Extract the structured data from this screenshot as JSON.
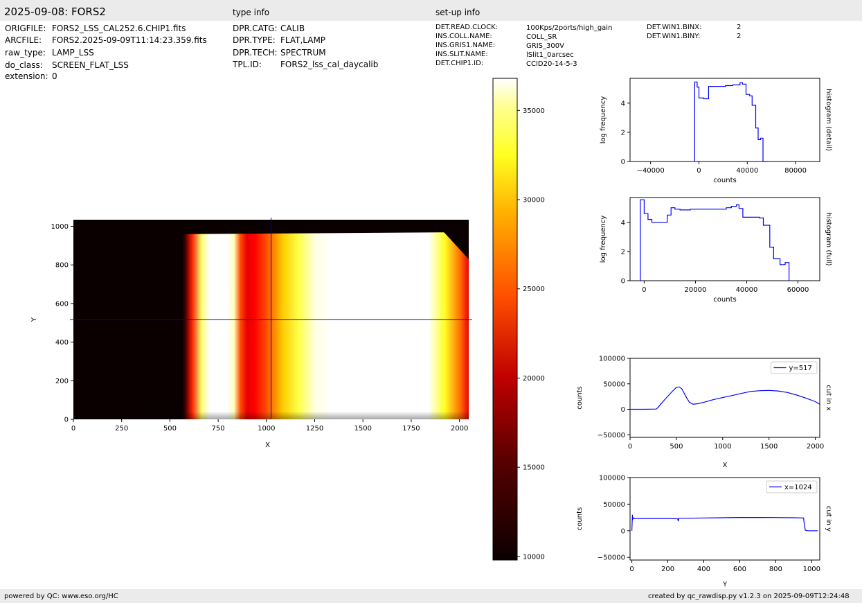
{
  "header": {
    "title": "2025-09-08: FORS2",
    "type_info_label": "type info",
    "setup_info_label": "set-up info"
  },
  "file_info": [
    {
      "key": "ORIGFILE:",
      "value": "FORS2_LSS_CAL252.6.CHIP1.fits"
    },
    {
      "key": "ARCFILE:",
      "value": "FORS2.2025-09-09T11:14:23.359.fits"
    },
    {
      "key": "raw_type:",
      "value": "LAMP_LSS"
    },
    {
      "key": "do_class:",
      "value": "SCREEN_FLAT_LSS"
    },
    {
      "key": "extension:",
      "value": "0"
    }
  ],
  "type_info": [
    {
      "key": "DPR.CATG:",
      "value": "CALIB"
    },
    {
      "key": "DPR.TYPE:",
      "value": "FLAT,LAMP"
    },
    {
      "key": "DPR.TECH:",
      "value": "SPECTRUM"
    },
    {
      "key": "TPL.ID:",
      "value": "FORS2_lss_cal_daycalib"
    }
  ],
  "setup_info": [
    {
      "key": "DET.READ.CLOCK:",
      "value": "100Kps/2ports/high_gain"
    },
    {
      "key": "INS.COLL.NAME:",
      "value": "COLL_SR"
    },
    {
      "key": "INS.GRIS1.NAME:",
      "value": "GRIS_300V"
    },
    {
      "key": "INS.SLIT.NAME:",
      "value": "lSlit1_0arcsec"
    },
    {
      "key": "DET.CHIP1.ID:",
      "value": "CCID20-14-5-3"
    }
  ],
  "setup_info2": [
    {
      "key": "DET.WIN1.BINX:",
      "value": "2"
    },
    {
      "key": "DET.WIN1.BINY:",
      "value": "2"
    }
  ],
  "footer": {
    "left": "powered by QC: www.eso.org/HC",
    "right": "created by qc_rawdisp.py v1.2.3 on 2025-09-09T12:24:48"
  },
  "colors": {
    "line": "#0000ff",
    "crosshair": "#0000cc",
    "header_bg": "#ebebeb"
  },
  "chart_data": [
    {
      "id": "image",
      "type": "heatmap",
      "xlabel": "X",
      "ylabel": "Y",
      "xlim": [
        0,
        2048
      ],
      "ylim": [
        0,
        1034
      ],
      "xticks": [
        0,
        250,
        500,
        750,
        1000,
        1250,
        1500,
        1750,
        2000
      ],
      "yticks": [
        0,
        200,
        400,
        600,
        800,
        1000
      ],
      "crosshair": {
        "x": 1024,
        "y": 517
      },
      "colormap": "hot"
    },
    {
      "id": "colorbar",
      "type": "colorbar",
      "range": [
        9800,
        36800
      ],
      "ticks": [
        10000,
        15000,
        20000,
        25000,
        30000,
        35000
      ]
    },
    {
      "id": "hist_detail",
      "type": "line",
      "xlabel": "counts",
      "ylabel": "log frequency",
      "side_label": "histogram (detail)",
      "xlim": [
        -57000,
        100000
      ],
      "ylim": [
        0,
        5.7
      ],
      "xticks": [
        -40000,
        0,
        40000,
        80000
      ],
      "yticks": [
        0,
        2,
        4
      ],
      "x": [
        -3500,
        -3500,
        -1500,
        -1500,
        0,
        0,
        4000,
        4000,
        8000,
        8000,
        16000,
        16000,
        22000,
        22000,
        28000,
        28000,
        34000,
        34000,
        36000,
        36000,
        39000,
        39000,
        42000,
        42000,
        44000,
        44000,
        47000,
        47000,
        49000,
        49000,
        51000,
        51000,
        53000,
        53000,
        55000,
        55000,
        57000,
        57000
      ],
      "y": [
        0,
        5.45,
        5.45,
        5.1,
        5.1,
        4.35,
        4.35,
        4.3,
        4.3,
        5.15,
        5.15,
        5.15,
        5.15,
        5.2,
        5.2,
        5.25,
        5.25,
        5.4,
        5.4,
        5.3,
        5.3,
        4.6,
        4.6,
        4.5,
        4.5,
        3.85,
        3.85,
        2.3,
        2.3,
        1.5,
        1.5,
        1.6,
        1.6,
        0.0,
        0.0,
        0.0,
        0.0,
        0.0
      ]
    },
    {
      "id": "hist_full",
      "type": "line",
      "xlabel": "counts",
      "ylabel": "log frequency",
      "side_label": "histogram (full)",
      "xlim": [
        -5500,
        68500
      ],
      "ylim": [
        0,
        5.7
      ],
      "xticks": [
        0,
        20000,
        40000,
        60000
      ],
      "yticks": [
        0,
        2,
        4
      ],
      "x": [
        -1500,
        -1500,
        0,
        0,
        1500,
        1500,
        3000,
        3000,
        9000,
        9000,
        10500,
        10500,
        12000,
        12000,
        14000,
        14000,
        18000,
        18000,
        32000,
        32000,
        34000,
        34000,
        36000,
        36000,
        37000,
        37000,
        38500,
        38500,
        45000,
        45000,
        46500,
        46500,
        49000,
        49000,
        50500,
        50500,
        53000,
        53000,
        55000,
        55000,
        56500,
        56500
      ],
      "y": [
        0,
        5.55,
        5.55,
        4.6,
        4.6,
        4.2,
        4.2,
        4.0,
        4.0,
        4.5,
        4.5,
        5.0,
        5.0,
        4.9,
        4.9,
        4.85,
        4.85,
        4.9,
        4.9,
        5.0,
        5.0,
        5.1,
        5.1,
        5.2,
        5.2,
        4.95,
        4.95,
        4.35,
        4.35,
        4.3,
        4.3,
        3.8,
        3.8,
        2.3,
        2.3,
        1.5,
        1.5,
        1.1,
        1.1,
        1.25,
        1.25,
        0.0
      ]
    },
    {
      "id": "cut_x",
      "type": "line",
      "xlabel": "X",
      "ylabel": "counts",
      "side_label": "cut in x",
      "legend": "y=517",
      "legend_position": "top-right",
      "xlim": [
        0,
        2048
      ],
      "ylim": [
        -55000,
        100000
      ],
      "xticks": [
        0,
        500,
        1000,
        1500,
        2000
      ],
      "yticks": [
        -50000,
        0,
        50000,
        100000
      ],
      "x": [
        0,
        150,
        280,
        300,
        340,
        400,
        450,
        500,
        530,
        560,
        600,
        640,
        680,
        730,
        800,
        900,
        1000,
        1100,
        1200,
        1300,
        1400,
        1500,
        1600,
        1700,
        1800,
        1900,
        2000,
        2048
      ],
      "y": [
        0,
        0,
        500,
        3000,
        12000,
        24000,
        34000,
        43000,
        44000,
        40000,
        26000,
        14000,
        10000,
        11000,
        14000,
        19000,
        23000,
        27000,
        31000,
        35000,
        36500,
        37000,
        36000,
        33000,
        28000,
        22000,
        15000,
        10000
      ]
    },
    {
      "id": "cut_y",
      "type": "line",
      "xlabel": "Y",
      "ylabel": "counts",
      "side_label": "cut in y",
      "legend": "x=1024",
      "legend_position": "top-right",
      "xlim": [
        -10,
        1045
      ],
      "ylim": [
        -55000,
        100000
      ],
      "xticks": [
        0,
        200,
        400,
        600,
        800,
        1000
      ],
      "yticks": [
        -50000,
        0,
        50000,
        100000
      ],
      "x": [
        0,
        3,
        5,
        8,
        12,
        100,
        200,
        255,
        258,
        262,
        300,
        400,
        500,
        600,
        700,
        800,
        900,
        955,
        960,
        965,
        975,
        1000,
        1034
      ],
      "y": [
        0,
        30000,
        22000,
        24000,
        23000,
        23000,
        23000,
        22500,
        18000,
        23500,
        23500,
        24000,
        24500,
        25000,
        25000,
        24800,
        24500,
        24000,
        10000,
        1000,
        0,
        0,
        0
      ]
    }
  ]
}
